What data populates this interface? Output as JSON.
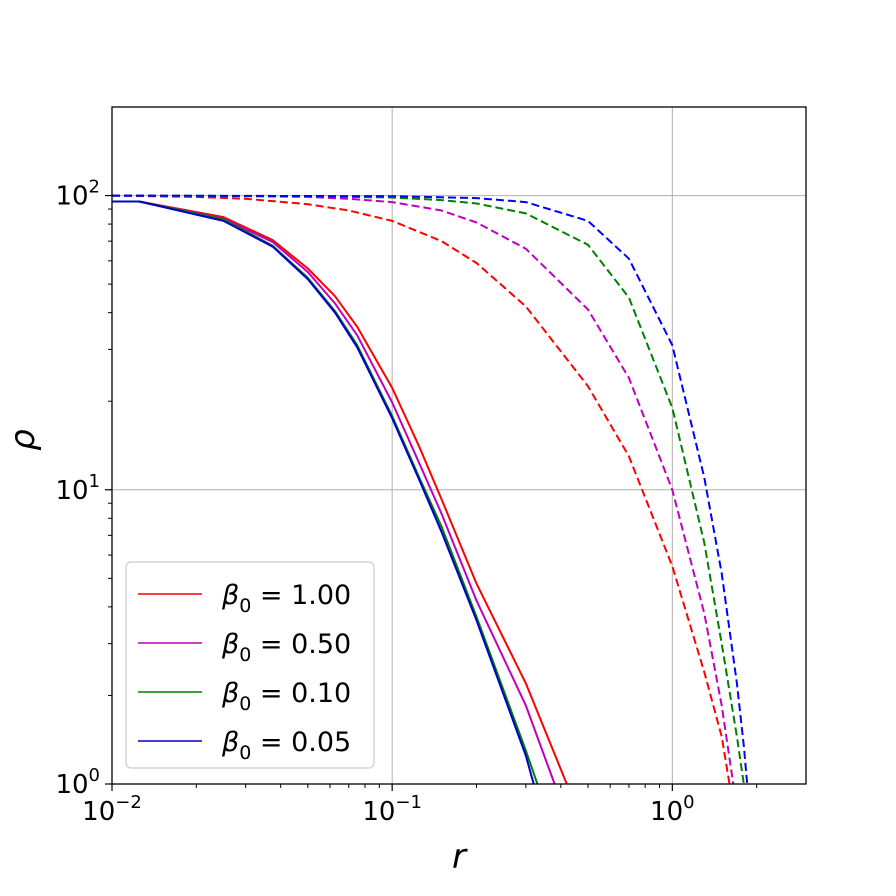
{
  "chart_data": {
    "type": "line",
    "xscale": "log",
    "yscale": "log",
    "xlim": [
      0.01,
      3.0
    ],
    "ylim": [
      1,
      200
    ],
    "xlabel": "r",
    "ylabel": "ρ",
    "grid": true,
    "legend_position": "lower-left",
    "x_ticks": [
      {
        "value": 0.01,
        "base": "10",
        "exp": "−2"
      },
      {
        "value": 0.1,
        "base": "10",
        "exp": "−1"
      },
      {
        "value": 1,
        "base": "10",
        "exp": "0"
      }
    ],
    "y_ticks": [
      {
        "value": 1,
        "base": "10",
        "exp": "0"
      },
      {
        "value": 10,
        "base": "10",
        "exp": "1"
      },
      {
        "value": 100,
        "base": "10",
        "exp": "2"
      }
    ],
    "series": [
      {
        "name": "β₀ = 1.00",
        "legend_symbol": "β",
        "legend_sub": "0",
        "legend_value": " = 1.00",
        "color": "#ff0000",
        "style": "solid",
        "x": [
          0.01,
          0.0125,
          0.025,
          0.0375,
          0.05,
          0.0625,
          0.075,
          0.1,
          0.125,
          0.15,
          0.2,
          0.3,
          0.42
        ],
        "y": [
          95.5,
          95.5,
          84.5,
          70.5,
          56.5,
          45.5,
          35.8,
          22.2,
          14.0,
          9.3,
          4.8,
          2.2,
          1.0
        ]
      },
      {
        "name": "β₀ = 0.50",
        "legend_symbol": "β",
        "legend_sub": "0",
        "legend_value": " = 0.50",
        "color": "#bf00bf",
        "style": "solid",
        "x": [
          0.01,
          0.0125,
          0.025,
          0.0375,
          0.05,
          0.0625,
          0.075,
          0.1,
          0.125,
          0.15,
          0.2,
          0.3,
          0.38
        ],
        "y": [
          95.5,
          95.5,
          83.5,
          69.5,
          55.0,
          43.0,
          33.5,
          19.8,
          12.3,
          8.3,
          4.2,
          1.85,
          1.0
        ]
      },
      {
        "name": "β₀ = 0.10",
        "legend_symbol": "β",
        "legend_sub": "0",
        "legend_value": " = 0.10",
        "color": "#008000",
        "style": "solid",
        "x": [
          0.01,
          0.0125,
          0.025,
          0.0375,
          0.05,
          0.0625,
          0.075,
          0.1,
          0.125,
          0.15,
          0.2,
          0.3,
          0.33
        ],
        "y": [
          95.5,
          95.5,
          83.0,
          67.5,
          52.5,
          40.5,
          31.0,
          17.8,
          11.0,
          7.5,
          3.7,
          1.3,
          1.0
        ]
      },
      {
        "name": "β₀ = 0.05",
        "legend_symbol": "β",
        "legend_sub": "0",
        "legend_value": " = 0.05",
        "color": "#0000cc",
        "style": "solid",
        "x": [
          0.01,
          0.0125,
          0.025,
          0.0375,
          0.05,
          0.0625,
          0.075,
          0.1,
          0.125,
          0.15,
          0.2,
          0.3,
          0.32
        ],
        "y": [
          95.5,
          95.5,
          82.0,
          67.0,
          52.0,
          40.0,
          30.5,
          17.5,
          10.8,
          7.2,
          3.6,
          1.25,
          1.0
        ]
      },
      {
        "name": "dashed β₀ = 1.00",
        "color": "#ff0000",
        "style": "dashed",
        "x": [
          0.01,
          0.02,
          0.03,
          0.05,
          0.07,
          0.1,
          0.15,
          0.2,
          0.3,
          0.5,
          0.7,
          1.0,
          1.3,
          1.5,
          1.6
        ],
        "y": [
          100,
          99,
          97.5,
          93.5,
          89,
          82,
          70,
          59,
          42,
          22.5,
          13,
          5.5,
          2.4,
          1.45,
          1.0
        ]
      },
      {
        "name": "dashed β₀ = 0.50",
        "color": "#bf00bf",
        "style": "dashed",
        "x": [
          0.01,
          0.03,
          0.05,
          0.07,
          0.1,
          0.15,
          0.2,
          0.3,
          0.5,
          0.7,
          1.0,
          1.3,
          1.5,
          1.65
        ],
        "y": [
          100,
          99.5,
          99,
          97.5,
          95,
          89,
          81,
          66,
          41,
          24,
          10,
          3.8,
          1.85,
          1.0
        ]
      },
      {
        "name": "dashed β₀ = 0.10",
        "color": "#008000",
        "style": "dashed",
        "x": [
          0.01,
          0.05,
          0.1,
          0.15,
          0.2,
          0.3,
          0.5,
          0.7,
          1.0,
          1.3,
          1.5,
          1.7,
          1.8
        ],
        "y": [
          100,
          99.5,
          98.5,
          96.5,
          94,
          87,
          68,
          45,
          19,
          6.6,
          3.0,
          1.45,
          1.0
        ]
      },
      {
        "name": "dashed β₀ = 0.05",
        "color": "#0000ff",
        "style": "dashed",
        "x": [
          0.01,
          0.1,
          0.2,
          0.3,
          0.5,
          0.7,
          1.0,
          1.3,
          1.5,
          1.7,
          1.8,
          1.85
        ],
        "y": [
          100,
          99.5,
          98,
          95,
          82,
          61,
          31,
          11,
          5.2,
          2.2,
          1.35,
          1.0
        ]
      }
    ]
  }
}
